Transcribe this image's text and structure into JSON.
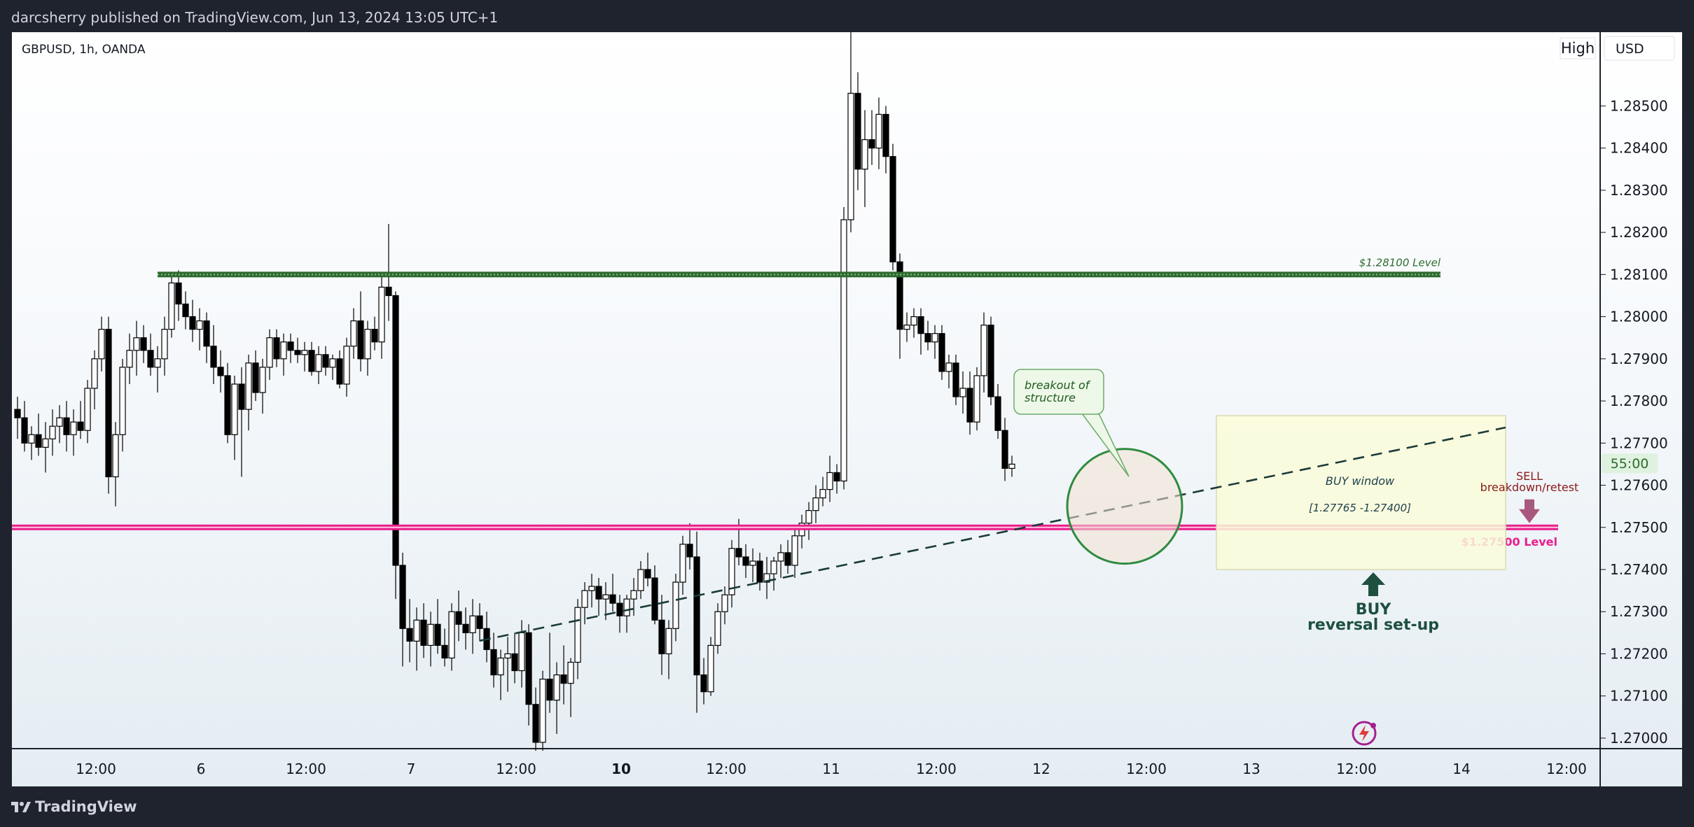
{
  "header": {
    "publisher_line": "darcsherry published on TradingView.com, Jun 13, 2024 13:05 UTC+1"
  },
  "chart": {
    "symbol_line": "GBPUSD, 1h, OANDA",
    "high_badge": "High",
    "currency_button": "USD",
    "countdown": "55:00",
    "price_ticks": [
      "1.28500",
      "1.28400",
      "1.28300",
      "1.28200",
      "1.28100",
      "1.28000",
      "1.27900",
      "1.27800",
      "1.27700",
      "1.27600",
      "1.27500",
      "1.27400",
      "1.27300",
      "1.27200",
      "1.27100",
      "1.27000"
    ],
    "time_ticks": [
      "12:00",
      "6",
      "12:00",
      "7",
      "12:00",
      "10",
      "12:00",
      "11",
      "12:00",
      "12",
      "12:00",
      "13",
      "12:00",
      "14",
      "12:00"
    ],
    "bold_time_tick": "10"
  },
  "annotations": {
    "level_high_label": "$1.28100 Level",
    "level_low_label": "$1.27500 Level",
    "callout_line1": "breakout of",
    "callout_line2": "structure",
    "buy_window_label": "BUY window",
    "buy_window_range": "[1.27765 -1.27400]",
    "buy_line1": "BUY",
    "buy_line2": "reversal set-up",
    "sell_line1": "SELL",
    "sell_line2": "breakdown/retest"
  },
  "colors": {
    "up_candle": "#ffffff",
    "down_candle": "#000000",
    "level_high": "#2e6b2e",
    "level_low": "#e91e8c",
    "buy_zone": "#fafbd9",
    "buy_arrow": "#1e5040",
    "sell_arrow": "#a8587e",
    "sell_text": "#8b1a1a"
  },
  "footer": {
    "brand": "TradingView"
  },
  "chart_data": {
    "type": "candlestick",
    "symbol": "GBPUSD",
    "interval": "1h",
    "ylim": [
      1.26975,
      1.28675
    ],
    "levels": [
      1.281,
      1.275
    ],
    "buy_zone": [
      1.27765,
      1.274
    ],
    "ohlc": [
      [
        1.2778,
        1.2781,
        1.2771,
        1.2776
      ],
      [
        1.2776,
        1.278,
        1.2768,
        1.277
      ],
      [
        1.277,
        1.2774,
        1.2766,
        1.2772
      ],
      [
        1.2772,
        1.2777,
        1.2767,
        1.2769
      ],
      [
        1.2769,
        1.2775,
        1.2763,
        1.2771
      ],
      [
        1.2771,
        1.2778,
        1.2767,
        1.2774
      ],
      [
        1.2774,
        1.2779,
        1.277,
        1.2776
      ],
      [
        1.2776,
        1.278,
        1.2768,
        1.2772
      ],
      [
        1.2772,
        1.2778,
        1.2767,
        1.2775
      ],
      [
        1.2775,
        1.278,
        1.2771,
        1.2773
      ],
      [
        1.2773,
        1.2785,
        1.277,
        1.2783
      ],
      [
        1.2783,
        1.2792,
        1.2778,
        1.279
      ],
      [
        1.279,
        1.28,
        1.2787,
        1.2797
      ],
      [
        1.2797,
        1.28,
        1.2758,
        1.2762
      ],
      [
        1.2762,
        1.2775,
        1.2755,
        1.2772
      ],
      [
        1.2772,
        1.279,
        1.2768,
        1.2788
      ],
      [
        1.2788,
        1.2796,
        1.2784,
        1.2792
      ],
      [
        1.2792,
        1.2799,
        1.2786,
        1.2795
      ],
      [
        1.2795,
        1.2798,
        1.2789,
        1.2792
      ],
      [
        1.2792,
        1.2796,
        1.2786,
        1.2788
      ],
      [
        1.2788,
        1.2793,
        1.2782,
        1.279
      ],
      [
        1.279,
        1.28,
        1.2786,
        1.2797
      ],
      [
        1.2797,
        1.281,
        1.2795,
        1.2808
      ],
      [
        1.2808,
        1.2811,
        1.2799,
        1.2803
      ],
      [
        1.2803,
        1.2806,
        1.2797,
        1.28
      ],
      [
        1.28,
        1.2804,
        1.2794,
        1.2797
      ],
      [
        1.2797,
        1.2802,
        1.2792,
        1.2799
      ],
      [
        1.2799,
        1.2801,
        1.2789,
        1.2793
      ],
      [
        1.2793,
        1.2798,
        1.2784,
        1.2788
      ],
      [
        1.2788,
        1.2792,
        1.2782,
        1.2786
      ],
      [
        1.2786,
        1.2789,
        1.277,
        1.2772
      ],
      [
        1.2772,
        1.2786,
        1.2766,
        1.2784
      ],
      [
        1.2784,
        1.2788,
        1.2762,
        1.2778
      ],
      [
        1.2778,
        1.2791,
        1.2773,
        1.2789
      ],
      [
        1.2789,
        1.2792,
        1.278,
        1.2782
      ],
      [
        1.2782,
        1.279,
        1.2777,
        1.2788
      ],
      [
        1.2788,
        1.2797,
        1.2785,
        1.2795
      ],
      [
        1.2795,
        1.2797,
        1.2788,
        1.279
      ],
      [
        1.279,
        1.2796,
        1.2786,
        1.2794
      ],
      [
        1.2794,
        1.2796,
        1.2789,
        1.2792
      ],
      [
        1.2792,
        1.2795,
        1.2789,
        1.2791
      ],
      [
        1.2791,
        1.2794,
        1.2787,
        1.2792
      ],
      [
        1.2792,
        1.2794,
        1.2786,
        1.2787
      ],
      [
        1.2787,
        1.2793,
        1.2784,
        1.2791
      ],
      [
        1.2791,
        1.2793,
        1.2786,
        1.2788
      ],
      [
        1.2788,
        1.2791,
        1.2785,
        1.279
      ],
      [
        1.279,
        1.2792,
        1.2783,
        1.2784
      ],
      [
        1.2784,
        1.2795,
        1.2781,
        1.2793
      ],
      [
        1.2793,
        1.2802,
        1.279,
        1.2799
      ],
      [
        1.2799,
        1.2806,
        1.2787,
        1.279
      ],
      [
        1.279,
        1.2799,
        1.2786,
        1.2797
      ],
      [
        1.2797,
        1.28,
        1.2792,
        1.2794
      ],
      [
        1.2794,
        1.281,
        1.279,
        1.2807
      ],
      [
        1.2807,
        1.2822,
        1.2799,
        1.2805
      ],
      [
        1.2805,
        1.2806,
        1.2733,
        1.2741
      ],
      [
        1.2741,
        1.2744,
        1.2717,
        1.2726
      ],
      [
        1.2726,
        1.2733,
        1.2718,
        1.2723
      ],
      [
        1.2723,
        1.2731,
        1.2716,
        1.2728
      ],
      [
        1.2728,
        1.2732,
        1.2719,
        1.2722
      ],
      [
        1.2722,
        1.273,
        1.2717,
        1.2727
      ],
      [
        1.2727,
        1.2733,
        1.272,
        1.2722
      ],
      [
        1.2722,
        1.2726,
        1.2717,
        1.2719
      ],
      [
        1.2719,
        1.2732,
        1.2716,
        1.273
      ],
      [
        1.273,
        1.2735,
        1.2723,
        1.2727
      ],
      [
        1.2727,
        1.2731,
        1.2721,
        1.2725
      ],
      [
        1.2725,
        1.2733,
        1.272,
        1.2729
      ],
      [
        1.2729,
        1.2732,
        1.2723,
        1.2726
      ],
      [
        1.2726,
        1.273,
        1.2718,
        1.2721
      ],
      [
        1.2721,
        1.2725,
        1.2712,
        1.2715
      ],
      [
        1.2715,
        1.2721,
        1.2709,
        1.2719
      ],
      [
        1.2719,
        1.2724,
        1.2711,
        1.272
      ],
      [
        1.272,
        1.2725,
        1.2713,
        1.2716
      ],
      [
        1.2716,
        1.2728,
        1.2712,
        1.2725
      ],
      [
        1.2725,
        1.2727,
        1.2703,
        1.2708
      ],
      [
        1.2708,
        1.2712,
        1.2697,
        1.2699
      ],
      [
        1.2699,
        1.2716,
        1.2697,
        1.2714
      ],
      [
        1.2714,
        1.2725,
        1.2706,
        1.2709
      ],
      [
        1.2709,
        1.2718,
        1.2701,
        1.2715
      ],
      [
        1.2715,
        1.2722,
        1.2708,
        1.2713
      ],
      [
        1.2713,
        1.2719,
        1.2705,
        1.2718
      ],
      [
        1.2718,
        1.2733,
        1.2714,
        1.2731
      ],
      [
        1.2731,
        1.2737,
        1.2727,
        1.2735
      ],
      [
        1.2735,
        1.2739,
        1.2731,
        1.2736
      ],
      [
        1.2736,
        1.2738,
        1.2729,
        1.2733
      ],
      [
        1.2733,
        1.2737,
        1.2728,
        1.2734
      ],
      [
        1.2734,
        1.2739,
        1.273,
        1.2732
      ],
      [
        1.2732,
        1.2734,
        1.2725,
        1.2729
      ],
      [
        1.2729,
        1.2734,
        1.2725,
        1.2733
      ],
      [
        1.2733,
        1.2738,
        1.2729,
        1.2735
      ],
      [
        1.2735,
        1.2742,
        1.2733,
        1.274
      ],
      [
        1.274,
        1.2744,
        1.2736,
        1.2738
      ],
      [
        1.2738,
        1.2741,
        1.2727,
        1.2728
      ],
      [
        1.2728,
        1.2734,
        1.2715,
        1.272
      ],
      [
        1.272,
        1.2728,
        1.2714,
        1.2726
      ],
      [
        1.2726,
        1.2739,
        1.2723,
        1.2737
      ],
      [
        1.2737,
        1.2748,
        1.2734,
        1.2746
      ],
      [
        1.2746,
        1.2751,
        1.274,
        1.2743
      ],
      [
        1.2743,
        1.2749,
        1.2706,
        1.2715
      ],
      [
        1.2715,
        1.2719,
        1.2708,
        1.2711
      ],
      [
        1.2711,
        1.2724,
        1.271,
        1.2722
      ],
      [
        1.2722,
        1.2732,
        1.272,
        1.273
      ],
      [
        1.273,
        1.2736,
        1.2727,
        1.2734
      ],
      [
        1.2734,
        1.2747,
        1.2731,
        1.2745
      ],
      [
        1.2745,
        1.2752,
        1.2741,
        1.2743
      ],
      [
        1.2743,
        1.2746,
        1.2738,
        1.2741
      ],
      [
        1.2741,
        1.2745,
        1.2737,
        1.2742
      ],
      [
        1.2742,
        1.2744,
        1.2735,
        1.2737
      ],
      [
        1.2737,
        1.2743,
        1.2733,
        1.2739
      ],
      [
        1.2739,
        1.2743,
        1.2735,
        1.2742
      ],
      [
        1.2742,
        1.2746,
        1.2738,
        1.2744
      ],
      [
        1.2744,
        1.2747,
        1.2739,
        1.2741
      ],
      [
        1.2741,
        1.275,
        1.2738,
        1.2748
      ],
      [
        1.2748,
        1.2753,
        1.2745,
        1.2751
      ],
      [
        1.2751,
        1.2756,
        1.2747,
        1.2754
      ],
      [
        1.2754,
        1.276,
        1.2751,
        1.2757
      ],
      [
        1.2757,
        1.2762,
        1.2755,
        1.2759
      ],
      [
        1.2759,
        1.2767,
        1.2756,
        1.2763
      ],
      [
        1.2763,
        1.2765,
        1.2758,
        1.2761
      ],
      [
        1.2761,
        1.2826,
        1.2759,
        1.2823
      ],
      [
        1.2823,
        1.287,
        1.282,
        1.2853
      ],
      [
        1.2853,
        1.2858,
        1.283,
        1.2835
      ],
      [
        1.2835,
        1.2849,
        1.2826,
        1.2842
      ],
      [
        1.2842,
        1.2849,
        1.2836,
        1.284
      ],
      [
        1.284,
        1.2852,
        1.2835,
        1.2848
      ],
      [
        1.2848,
        1.285,
        1.2834,
        1.2838
      ],
      [
        1.2838,
        1.2841,
        1.2811,
        1.2813
      ],
      [
        1.2813,
        1.2815,
        1.279,
        1.2797
      ],
      [
        1.2797,
        1.2801,
        1.2794,
        1.2798
      ],
      [
        1.2798,
        1.2802,
        1.2795,
        1.28
      ],
      [
        1.28,
        1.2802,
        1.2791,
        1.2796
      ],
      [
        1.2796,
        1.2799,
        1.2792,
        1.2794
      ],
      [
        1.2794,
        1.2798,
        1.279,
        1.2796
      ],
      [
        1.2796,
        1.2798,
        1.2785,
        1.2787
      ],
      [
        1.2787,
        1.2791,
        1.2783,
        1.2789
      ],
      [
        1.2789,
        1.2791,
        1.2779,
        1.2781
      ],
      [
        1.2781,
        1.2787,
        1.2777,
        1.2783
      ],
      [
        1.2783,
        1.2787,
        1.2772,
        1.2775
      ],
      [
        1.2775,
        1.2788,
        1.2773,
        1.2786
      ],
      [
        1.2786,
        1.2801,
        1.2782,
        1.2798
      ],
      [
        1.2798,
        1.28,
        1.2779,
        1.2781
      ],
      [
        1.2781,
        1.2784,
        1.2771,
        1.2773
      ],
      [
        1.2773,
        1.2776,
        1.2761,
        1.2764
      ],
      [
        1.2764,
        1.2767,
        1.2762,
        1.2765
      ]
    ]
  }
}
